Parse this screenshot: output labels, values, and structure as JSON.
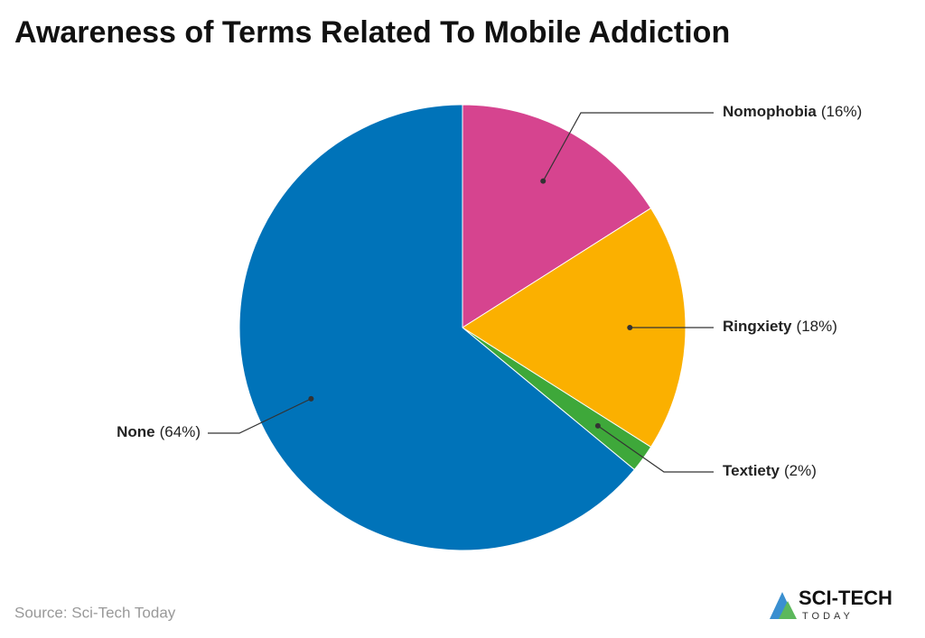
{
  "chart_data": {
    "type": "pie",
    "title": "Awareness of Terms Related To Mobile Addiction",
    "categories": [
      "Nomophobia",
      "Ringxiety",
      "Textiety",
      "None"
    ],
    "values": [
      16,
      18,
      2,
      64
    ],
    "value_labels": [
      "(16%)",
      "(18%)",
      "(2%)",
      "(64%)"
    ],
    "colors": [
      "#d6448f",
      "#fbb000",
      "#3ea83a",
      "#0073b9"
    ],
    "source": "Source: Sci-Tech Today",
    "logo": {
      "name": "SCI-TECH",
      "tagline": "TODAY"
    }
  }
}
